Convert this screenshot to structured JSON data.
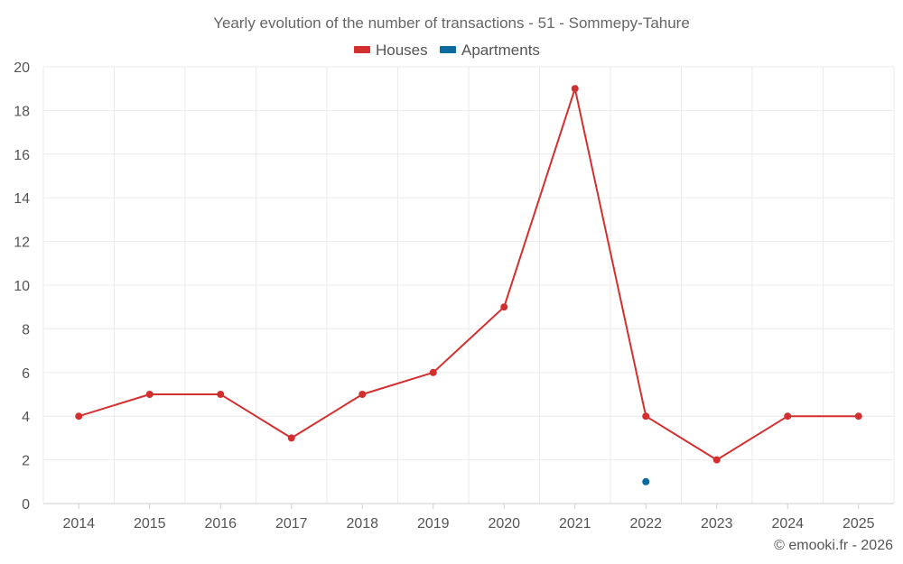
{
  "chart_data": {
    "type": "line",
    "title": "Yearly evolution of the number of transactions - 51 - Sommepy-Tahure",
    "categories": [
      "2014",
      "2015",
      "2016",
      "2017",
      "2018",
      "2019",
      "2020",
      "2021",
      "2022",
      "2023",
      "2024",
      "2025"
    ],
    "series": [
      {
        "name": "Houses",
        "color": "#d32f2f",
        "values": [
          4,
          5,
          5,
          3,
          5,
          6,
          9,
          19,
          4,
          2,
          4,
          4
        ]
      },
      {
        "name": "Apartments",
        "color": "#0d6aa1",
        "values": [
          null,
          null,
          null,
          null,
          null,
          null,
          null,
          null,
          1,
          null,
          null,
          null
        ]
      }
    ],
    "ylim": [
      0,
      20
    ],
    "yticks": [
      0,
      2,
      4,
      6,
      8,
      10,
      12,
      14,
      16,
      18,
      20
    ],
    "legend_position": "top-center",
    "grid": true
  },
  "credit": "© emooki.fr - 2026"
}
